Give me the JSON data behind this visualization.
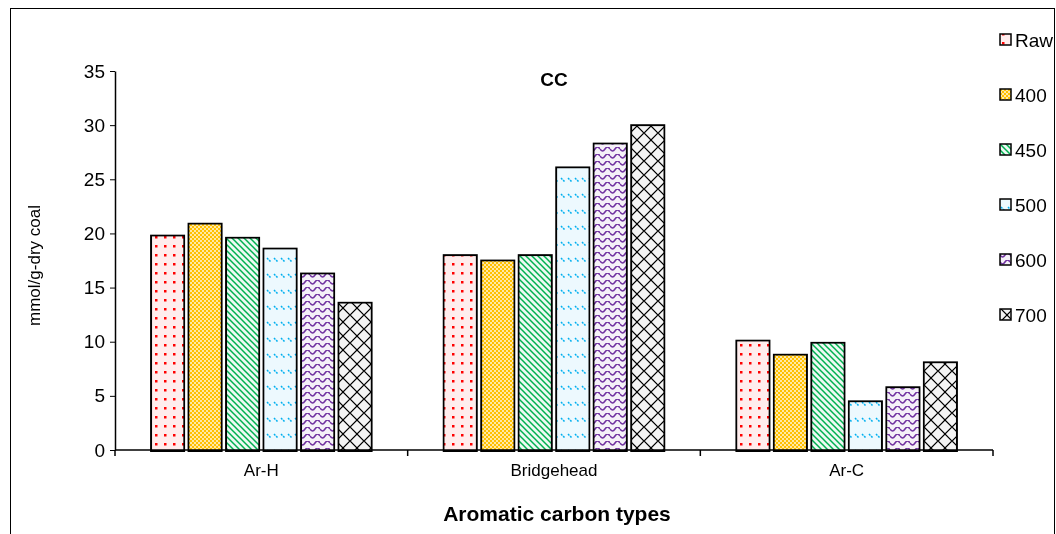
{
  "chart_data": {
    "type": "bar",
    "title": "CC",
    "xlabel": "Aromatic carbon types",
    "ylabel": "mmol/g-dry coal",
    "categories": [
      "Ar-H",
      "Bridgehead",
      "Ar-C"
    ],
    "series": [
      {
        "name": "Raw",
        "color": "#ff0000",
        "values": [
          19.7,
          17.9,
          10.0
        ]
      },
      {
        "name": "400",
        "color": "#ffc000",
        "values": [
          20.8,
          17.4,
          8.7
        ]
      },
      {
        "name": "450",
        "color": "#00b050",
        "values": [
          19.5,
          17.9,
          9.8
        ]
      },
      {
        "name": "500",
        "color": "#00b0f0",
        "values": [
          18.5,
          26.0,
          4.4
        ]
      },
      {
        "name": "600",
        "color": "#7030a0",
        "values": [
          16.2,
          28.2,
          5.7
        ]
      },
      {
        "name": "700",
        "color": "#000000",
        "values": [
          13.5,
          29.9,
          8.0
        ]
      }
    ],
    "ylim": [
      0,
      35
    ],
    "yticks": [
      0,
      5,
      10,
      15,
      20,
      25,
      30,
      35
    ],
    "grid": false,
    "legend": "top right"
  }
}
